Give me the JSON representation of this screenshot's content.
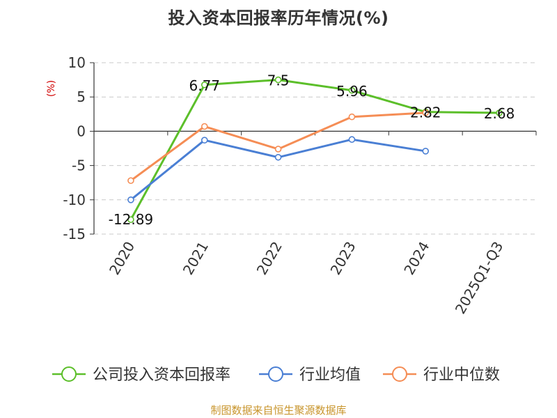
{
  "title": "投入资本回报率历年情况(%)",
  "source": "制图数据来自恒生聚源数据库",
  "chart_data": {
    "type": "line",
    "title": "投入资本回报率历年情况(%)",
    "ylabel": "(%)",
    "xlabel": "",
    "categories": [
      "2020",
      "2021",
      "2022",
      "2023",
      "2024",
      "2025Q1-Q3"
    ],
    "ylim": [
      -15,
      10
    ],
    "yticks": [
      "10",
      "5",
      "0",
      "-5",
      "-10",
      "-15"
    ],
    "grid": true,
    "legend_position": "bottom",
    "series": [
      {
        "name": "公司投入资本回报率",
        "color": "#5cbf2a",
        "values": [
          -12.89,
          6.77,
          7.5,
          5.96,
          2.82,
          2.68
        ],
        "labels": [
          "-12.89",
          "6.77",
          "7.5",
          "5.96",
          "2.82",
          "2.68"
        ]
      },
      {
        "name": "行业均值",
        "color": "#4a7fd4",
        "values": [
          -10.0,
          -1.3,
          -3.8,
          -1.2,
          -2.9,
          null
        ]
      },
      {
        "name": "行业中位数",
        "color": "#f58d55",
        "values": [
          -7.2,
          0.7,
          -2.6,
          2.1,
          2.7,
          null
        ]
      }
    ]
  }
}
